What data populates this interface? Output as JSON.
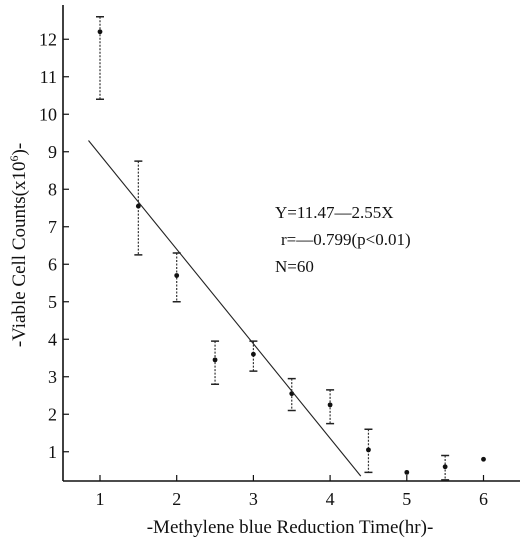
{
  "chart_data": {
    "type": "scatter",
    "title": "",
    "xlabel": "-Methylene blue Reduction Time(hr)-",
    "ylabel_text": "-Viable Cell Counts(x10",
    "ylabel_exp": "6",
    "ylabel_end": ")-",
    "xlim": [
      0.6,
      6.45
    ],
    "ylim": [
      0.3,
      12.6
    ],
    "xticks": [
      1,
      2,
      3,
      4,
      5,
      6
    ],
    "yticks": [
      1,
      2,
      3,
      4,
      5,
      6,
      7,
      8,
      9,
      10,
      11,
      12
    ],
    "points": [
      {
        "x": 1.0,
        "y": 12.2,
        "lo": 10.4,
        "hi": 12.6
      },
      {
        "x": 1.5,
        "y": 7.55,
        "lo": 6.25,
        "hi": 8.75
      },
      {
        "x": 2.0,
        "y": 5.7,
        "lo": 5.0,
        "hi": 6.3
      },
      {
        "x": 2.5,
        "y": 3.45,
        "lo": 2.8,
        "hi": 3.95
      },
      {
        "x": 3.0,
        "y": 3.6,
        "lo": 3.15,
        "hi": 3.95
      },
      {
        "x": 3.5,
        "y": 2.55,
        "lo": 2.1,
        "hi": 2.95
      },
      {
        "x": 4.0,
        "y": 2.25,
        "lo": 1.75,
        "hi": 2.65
      },
      {
        "x": 4.5,
        "y": 1.05,
        "lo": 0.45,
        "hi": 1.6
      },
      {
        "x": 5.0,
        "y": 0.45,
        "lo": null,
        "hi": null
      },
      {
        "x": 5.5,
        "y": 0.6,
        "lo": 0.25,
        "hi": 0.9
      },
      {
        "x": 6.0,
        "y": 0.8,
        "lo": null,
        "hi": null
      }
    ],
    "regression": {
      "x1": 0.85,
      "y1": 9.3,
      "x2": 4.4,
      "y2": 0.35
    },
    "annotation": {
      "equation": "Y=11.47—2.55X",
      "r": "r=—0.799(p<0.01)",
      "n": "N=60"
    }
  }
}
